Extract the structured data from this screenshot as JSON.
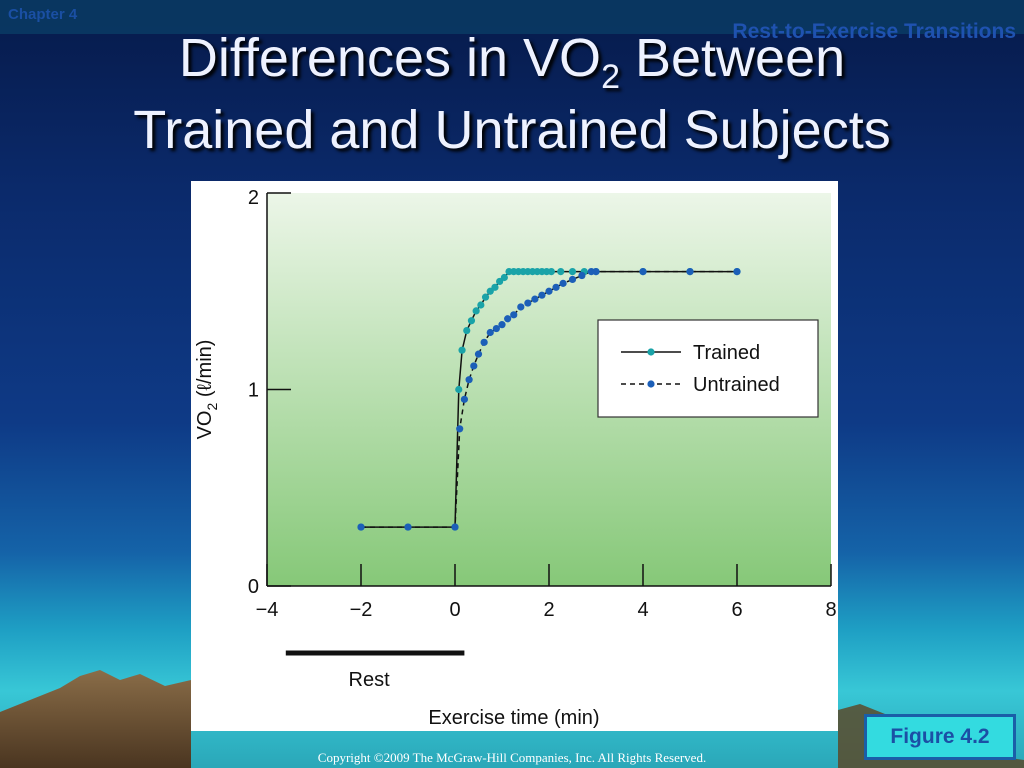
{
  "slide": {
    "chapter": "Chapter 4",
    "topic": "Rest-to-Exercise Transitions",
    "title_line1_pre": "Differences in VO",
    "title_line1_sub": "2",
    "title_line1_post": " Between",
    "title_line2": "Trained and Untrained Subjects",
    "figure_label": "Figure 4.2",
    "copyright": "Copyright ©2009 The McGraw-Hill Companies, Inc. All Rights Reserved."
  },
  "colors": {
    "trained": "#1aa3a8",
    "untrained": "#1c5fb8",
    "plot_bg_top": "#ecf6e8",
    "plot_bg_bottom": "#86c878"
  },
  "chart_data": {
    "type": "line",
    "xlabel": "Exercise time (min)",
    "ylabel_pre": "VO",
    "ylabel_sub": "2",
    "ylabel_post": " (ℓ/min)",
    "xlim": [
      -4,
      8
    ],
    "ylim": [
      0,
      2
    ],
    "x_ticks": [
      "−4",
      "−2",
      "0",
      "2",
      "4",
      "6",
      "8"
    ],
    "y_ticks": [
      "0",
      "1",
      "2"
    ],
    "rest_label": "Rest",
    "rest_range": [
      -3.6,
      0.2
    ],
    "legend_position": "right",
    "series": [
      {
        "name": "Trained",
        "style": "solid",
        "x": [
          -2,
          -1,
          0,
          0.08,
          0.15,
          0.25,
          0.35,
          0.45,
          0.55,
          0.65,
          0.75,
          0.85,
          0.95,
          1.05,
          1.15,
          1.25,
          1.35,
          1.45,
          1.55,
          1.65,
          1.75,
          1.85,
          1.95,
          2.05,
          2.25,
          2.5,
          2.75,
          3,
          4,
          5,
          6
        ],
        "y": [
          0.3,
          0.3,
          0.3,
          1.0,
          1.2,
          1.3,
          1.35,
          1.4,
          1.43,
          1.47,
          1.5,
          1.52,
          1.55,
          1.57,
          1.6,
          1.6,
          1.6,
          1.6,
          1.6,
          1.6,
          1.6,
          1.6,
          1.6,
          1.6,
          1.6,
          1.6,
          1.6,
          1.6,
          1.6,
          1.6,
          1.6
        ]
      },
      {
        "name": "Untrained",
        "style": "dashed",
        "x": [
          -2,
          -1,
          0,
          0.1,
          0.2,
          0.3,
          0.4,
          0.5,
          0.62,
          0.75,
          0.88,
          1.0,
          1.12,
          1.25,
          1.4,
          1.55,
          1.7,
          1.85,
          2.0,
          2.15,
          2.3,
          2.5,
          2.7,
          2.9,
          3,
          4,
          5,
          6
        ],
        "y": [
          0.3,
          0.3,
          0.3,
          0.8,
          0.95,
          1.05,
          1.12,
          1.18,
          1.24,
          1.29,
          1.31,
          1.33,
          1.36,
          1.38,
          1.42,
          1.44,
          1.46,
          1.48,
          1.5,
          1.52,
          1.54,
          1.56,
          1.58,
          1.6,
          1.6,
          1.6,
          1.6,
          1.6
        ]
      }
    ]
  }
}
